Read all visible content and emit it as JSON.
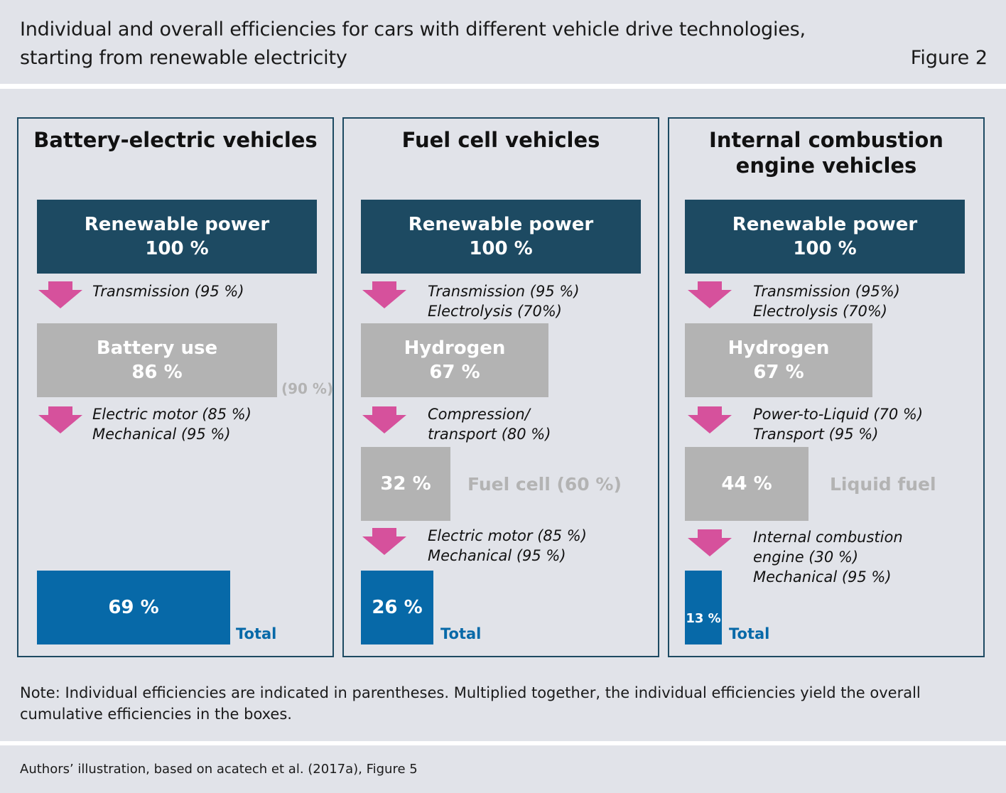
{
  "header": {
    "title_line1": "Individual and overall efficiencies for cars with different vehicle drive technologies,",
    "title_line2": "starting from renewable electricity",
    "figure_label": "Figure 2"
  },
  "panels": [
    {
      "title": "Battery-electric vehicles",
      "source_box": {
        "label": "Renewable power",
        "value": "100 %"
      },
      "step1": {
        "line1": "Transmission (95 %)"
      },
      "mid_box": {
        "label": "Battery use",
        "value": "86 %",
        "side_note": "(90 %)"
      },
      "step2": {
        "line1": "Electric motor  (85 %)",
        "line2": "Mechanical (95 %)"
      },
      "total": {
        "value": "69 %",
        "label": "Total"
      }
    },
    {
      "title": "Fuel cell vehicles",
      "source_box": {
        "label": "Renewable power",
        "value": "100 %"
      },
      "step1": {
        "line1": "Transmission (95 %)",
        "line2": "Electrolysis (70%)"
      },
      "mid_box": {
        "label": "Hydrogen",
        "value": "67 %"
      },
      "step2": {
        "line1": "Compression/",
        "line2": "transport  (80 %)"
      },
      "stage3": {
        "value": "32 %",
        "side_label": "Fuel cell (60 %)"
      },
      "step3": {
        "line1": "Electric motor (85 %)",
        "line2": "Mechanical (95 %)"
      },
      "total": {
        "value": "26 %",
        "label": "Total"
      }
    },
    {
      "title_line1": "Internal combustion",
      "title_line2": "engine vehicles",
      "source_box": {
        "label": "Renewable power",
        "value": "100 %"
      },
      "step1": {
        "line1": "Transmission (95%)",
        "line2": "Electrolysis  (70%)"
      },
      "mid_box": {
        "label": "Hydrogen",
        "value": "67 %"
      },
      "step2": {
        "line1": "Power-to-Liquid (70 %)",
        "line2": "Transport (95 %)"
      },
      "stage3": {
        "value": "44 %",
        "side_label": "Liquid fuel"
      },
      "step3": {
        "line1": "Internal combustion",
        "line2": "engine (30 %)",
        "line3": "Mechanical (95 %)"
      },
      "total": {
        "value": "13 %",
        "label": "Total"
      }
    }
  ],
  "note": "Note: Individual efficiencies are indicated in parentheses. Multiplied together, the individual efficiencies yield the overall cumulative efficiencies in the boxes.",
  "source": "Authors’ illustration, based on acatech et al. (2017a), Figure 5",
  "colors": {
    "navy": "#1d4a62",
    "grey": "#b3b3b3",
    "blue": "#0769a8",
    "arrow_pink": "#d6519c",
    "band": "#e1e3e9"
  }
}
